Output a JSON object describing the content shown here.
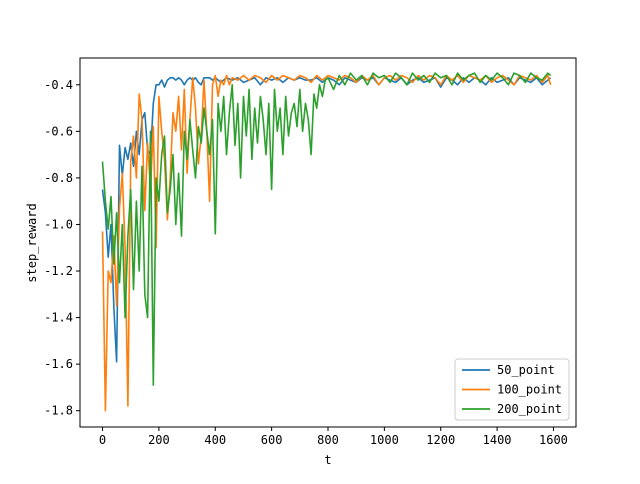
{
  "chart_data": {
    "type": "line",
    "title": "",
    "xlabel": "t",
    "ylabel": "step_reward",
    "xlim": [
      -80,
      1680
    ],
    "ylim": [
      -1.87,
      -0.285
    ],
    "xticks": [
      0,
      200,
      400,
      600,
      800,
      1000,
      1200,
      1400,
      1600
    ],
    "yticks": [
      -1.8,
      -1.6,
      -1.4,
      -1.2,
      -1.0,
      -0.8,
      -0.6,
      -0.4
    ],
    "xtick_labels": [
      "0",
      "200",
      "400",
      "600",
      "800",
      "1000",
      "1200",
      "1400",
      "1600"
    ],
    "ytick_labels": [
      "-1.8",
      "-1.6",
      "-1.4",
      "-1.2",
      "-1.0",
      "-0.8",
      "-0.6",
      "-0.4"
    ],
    "grid": false,
    "legend_position": "lower-right",
    "series": [
      {
        "name": "50_point",
        "color": "#1f77b4",
        "x": [
          0,
          10,
          20,
          30,
          40,
          50,
          60,
          70,
          80,
          90,
          100,
          110,
          120,
          130,
          140,
          150,
          160,
          170,
          180,
          190,
          200,
          210,
          220,
          230,
          240,
          250,
          260,
          270,
          280,
          290,
          300,
          310,
          320,
          330,
          340,
          350,
          360,
          370,
          380,
          390,
          400,
          420,
          440,
          460,
          480,
          500,
          520,
          540,
          560,
          580,
          600,
          620,
          640,
          660,
          680,
          700,
          720,
          740,
          760,
          780,
          800,
          820,
          840,
          860,
          880,
          900,
          920,
          940,
          960,
          980,
          1000,
          1020,
          1040,
          1060,
          1080,
          1100,
          1120,
          1140,
          1160,
          1180,
          1200,
          1220,
          1240,
          1260,
          1280,
          1300,
          1320,
          1340,
          1360,
          1380,
          1400,
          1420,
          1440,
          1460,
          1480,
          1500,
          1520,
          1540,
          1560,
          1580,
          1590
        ],
        "y": [
          -0.85,
          -0.95,
          -1.14,
          -1.0,
          -1.35,
          -1.59,
          -0.66,
          -0.79,
          -0.67,
          -0.72,
          -0.65,
          -0.75,
          -0.6,
          -0.7,
          -0.55,
          -0.52,
          -0.68,
          -0.7,
          -0.48,
          -0.4,
          -0.4,
          -0.38,
          -0.41,
          -0.38,
          -0.37,
          -0.37,
          -0.38,
          -0.37,
          -0.38,
          -0.4,
          -0.38,
          -0.37,
          -0.38,
          -0.37,
          -0.39,
          -0.4,
          -0.37,
          -0.37,
          -0.37,
          -0.38,
          -0.37,
          -0.39,
          -0.37,
          -0.38,
          -0.37,
          -0.39,
          -0.38,
          -0.37,
          -0.4,
          -0.37,
          -0.38,
          -0.37,
          -0.39,
          -0.37,
          -0.38,
          -0.37,
          -0.38,
          -0.38,
          -0.37,
          -0.39,
          -0.37,
          -0.38,
          -0.4,
          -0.37,
          -0.38,
          -0.39,
          -0.37,
          -0.38,
          -0.37,
          -0.4,
          -0.37,
          -0.38,
          -0.39,
          -0.37,
          -0.4,
          -0.38,
          -0.37,
          -0.39,
          -0.38,
          -0.37,
          -0.41,
          -0.37,
          -0.38,
          -0.4,
          -0.37,
          -0.39,
          -0.37,
          -0.38,
          -0.4,
          -0.37,
          -0.39,
          -0.38,
          -0.37,
          -0.4,
          -0.37,
          -0.38,
          -0.39,
          -0.37,
          -0.4,
          -0.38,
          -0.37
        ]
      },
      {
        "name": "100_point",
        "color": "#ff7f0e",
        "x": [
          0,
          10,
          20,
          30,
          40,
          50,
          60,
          70,
          80,
          90,
          100,
          110,
          120,
          130,
          140,
          150,
          160,
          170,
          180,
          190,
          200,
          210,
          220,
          230,
          240,
          250,
          260,
          270,
          280,
          290,
          300,
          310,
          320,
          330,
          340,
          350,
          360,
          370,
          380,
          390,
          400,
          410,
          420,
          430,
          440,
          450,
          460,
          480,
          500,
          520,
          540,
          560,
          580,
          600,
          620,
          640,
          660,
          680,
          700,
          720,
          740,
          760,
          780,
          800,
          820,
          840,
          860,
          880,
          900,
          920,
          940,
          960,
          980,
          1000,
          1020,
          1040,
          1060,
          1080,
          1100,
          1120,
          1140,
          1160,
          1180,
          1200,
          1220,
          1240,
          1260,
          1280,
          1300,
          1320,
          1340,
          1360,
          1380,
          1400,
          1420,
          1440,
          1460,
          1480,
          1500,
          1520,
          1540,
          1560,
          1580,
          1590
        ],
        "y": [
          -1.03,
          -1.8,
          -1.2,
          -1.25,
          -1.05,
          -1.35,
          -0.93,
          -0.78,
          -1.1,
          -1.78,
          -0.73,
          -0.62,
          -0.8,
          -0.44,
          -0.55,
          -0.94,
          -0.65,
          -0.85,
          -0.58,
          -1.1,
          -0.45,
          -0.6,
          -0.72,
          -0.98,
          -0.8,
          -0.52,
          -0.6,
          -0.45,
          -0.68,
          -0.42,
          -0.78,
          -0.55,
          -0.37,
          -0.5,
          -0.74,
          -0.62,
          -0.38,
          -0.6,
          -0.9,
          -0.4,
          -0.36,
          -0.45,
          -0.38,
          -0.4,
          -0.36,
          -0.4,
          -0.37,
          -0.38,
          -0.36,
          -0.38,
          -0.36,
          -0.37,
          -0.39,
          -0.36,
          -0.38,
          -0.36,
          -0.37,
          -0.38,
          -0.36,
          -0.37,
          -0.39,
          -0.36,
          -0.38,
          -0.36,
          -0.37,
          -0.38,
          -0.36,
          -0.37,
          -0.39,
          -0.36,
          -0.38,
          -0.36,
          -0.4,
          -0.37,
          -0.36,
          -0.38,
          -0.36,
          -0.37,
          -0.39,
          -0.36,
          -0.38,
          -0.36,
          -0.37,
          -0.4,
          -0.36,
          -0.38,
          -0.36,
          -0.39,
          -0.36,
          -0.37,
          -0.38,
          -0.36,
          -0.39,
          -0.37,
          -0.36,
          -0.38,
          -0.4,
          -0.36,
          -0.37,
          -0.38,
          -0.36,
          -0.39,
          -0.36,
          -0.4
        ]
      },
      {
        "name": "200_point",
        "color": "#2ca02c",
        "x": [
          0,
          10,
          20,
          30,
          40,
          50,
          60,
          70,
          80,
          90,
          100,
          110,
          120,
          130,
          140,
          150,
          160,
          170,
          180,
          190,
          200,
          210,
          220,
          230,
          240,
          250,
          260,
          270,
          280,
          290,
          300,
          310,
          320,
          330,
          340,
          350,
          360,
          370,
          380,
          390,
          400,
          410,
          420,
          430,
          440,
          450,
          460,
          470,
          480,
          490,
          500,
          510,
          520,
          530,
          540,
          550,
          560,
          570,
          580,
          590,
          600,
          610,
          620,
          630,
          640,
          650,
          660,
          670,
          680,
          690,
          700,
          710,
          720,
          730,
          740,
          750,
          760,
          770,
          780,
          790,
          800,
          820,
          840,
          860,
          880,
          900,
          920,
          940,
          960,
          980,
          1000,
          1020,
          1040,
          1060,
          1080,
          1100,
          1120,
          1140,
          1160,
          1180,
          1200,
          1220,
          1240,
          1260,
          1280,
          1300,
          1320,
          1340,
          1360,
          1380,
          1400,
          1420,
          1440,
          1460,
          1480,
          1500,
          1520,
          1540,
          1560,
          1580,
          1590
        ],
        "y": [
          -0.73,
          -0.9,
          -1.02,
          -0.88,
          -1.17,
          -0.95,
          -1.25,
          -1.0,
          -1.4,
          -1.05,
          -0.85,
          -1.28,
          -0.9,
          -1.2,
          -0.75,
          -1.3,
          -1.4,
          -0.6,
          -1.69,
          -0.8,
          -0.9,
          -0.7,
          -0.62,
          -0.95,
          -0.85,
          -0.7,
          -1.0,
          -0.78,
          -1.05,
          -0.6,
          -0.72,
          -0.55,
          -0.68,
          -0.8,
          -0.58,
          -0.65,
          -0.5,
          -0.6,
          -0.7,
          -0.55,
          -1.04,
          -0.48,
          -0.6,
          -0.45,
          -0.7,
          -0.52,
          -0.4,
          -0.66,
          -0.48,
          -0.8,
          -0.45,
          -0.62,
          -0.42,
          -0.72,
          -0.5,
          -0.65,
          -0.45,
          -0.55,
          -0.7,
          -0.48,
          -0.85,
          -0.42,
          -0.6,
          -0.5,
          -0.7,
          -0.45,
          -0.62,
          -0.52,
          -0.48,
          -0.58,
          -0.42,
          -0.6,
          -0.48,
          -0.55,
          -0.7,
          -0.44,
          -0.5,
          -0.4,
          -0.45,
          -0.38,
          -0.37,
          -0.42,
          -0.36,
          -0.4,
          -0.35,
          -0.38,
          -0.36,
          -0.4,
          -0.35,
          -0.37,
          -0.36,
          -0.39,
          -0.35,
          -0.37,
          -0.4,
          -0.35,
          -0.38,
          -0.36,
          -0.39,
          -0.35,
          -0.37,
          -0.36,
          -0.4,
          -0.35,
          -0.38,
          -0.36,
          -0.35,
          -0.39,
          -0.36,
          -0.38,
          -0.35,
          -0.37,
          -0.4,
          -0.35,
          -0.36,
          -0.39,
          -0.35,
          -0.37,
          -0.38,
          -0.35,
          -0.36
        ]
      }
    ]
  }
}
